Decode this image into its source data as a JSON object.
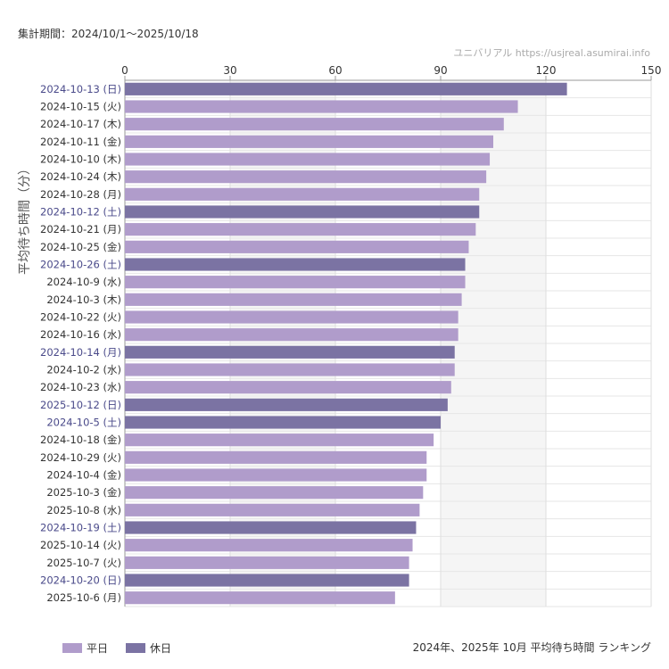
{
  "header": {
    "period": "集計期間：2024/10/1〜2025/10/18",
    "source": "ユニバリアル  https://usjreal.asumirai.info"
  },
  "footer": {
    "legend_weekday": "平日",
    "legend_holiday": "休日",
    "caption": "2024年、2025年 10月 平均待ち時間 ランキング"
  },
  "colors": {
    "weekday": "#b09ccb",
    "holiday": "#7b73a3",
    "holiday_label": "#4a4a8a",
    "weekday_label": "#333333"
  },
  "chart_data": {
    "type": "bar",
    "orientation": "horizontal",
    "ylabel": "平均待ち時間（分）",
    "xlim": [
      0,
      150
    ],
    "xticks": [
      0,
      30,
      60,
      90,
      120,
      150
    ],
    "grid": true,
    "legend_position": "bottom-left",
    "categories": [
      "2024-10-13 (日)",
      "2024-10-15 (火)",
      "2024-10-17 (木)",
      "2024-10-11 (金)",
      "2024-10-10 (木)",
      "2024-10-24 (木)",
      "2024-10-28 (月)",
      "2024-10-12 (土)",
      "2024-10-21 (月)",
      "2024-10-25 (金)",
      "2024-10-26 (土)",
      "2024-10-9 (水)",
      "2024-10-3 (木)",
      "2024-10-22 (火)",
      "2024-10-16 (水)",
      "2024-10-14 (月)",
      "2024-10-2 (水)",
      "2024-10-23 (水)",
      "2025-10-12 (日)",
      "2024-10-5 (土)",
      "2024-10-18 (金)",
      "2024-10-29 (火)",
      "2024-10-4 (金)",
      "2025-10-3 (金)",
      "2025-10-8 (水)",
      "2024-10-19 (土)",
      "2025-10-14 (火)",
      "2025-10-7 (火)",
      "2024-10-20 (日)",
      "2025-10-6 (月)"
    ],
    "values": [
      126,
      112,
      108,
      105,
      104,
      103,
      101,
      101,
      100,
      98,
      97,
      97,
      96,
      95,
      95,
      94,
      94,
      93,
      92,
      90,
      88,
      86,
      86,
      85,
      84,
      83,
      82,
      81,
      81,
      77
    ],
    "holiday": [
      true,
      false,
      false,
      false,
      false,
      false,
      false,
      true,
      false,
      false,
      true,
      false,
      false,
      false,
      false,
      true,
      false,
      false,
      true,
      true,
      false,
      false,
      false,
      false,
      false,
      true,
      false,
      false,
      true,
      false
    ]
  }
}
